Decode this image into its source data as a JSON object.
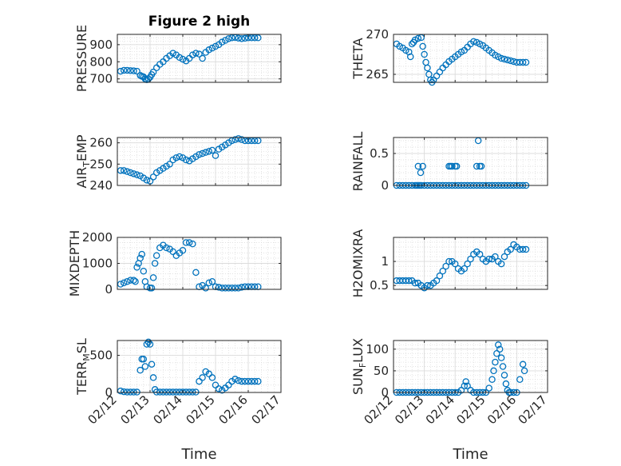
{
  "figure": {
    "title": "Figure 2 high"
  },
  "chart_data": [
    {
      "type": "scatter",
      "title": "Figure 2 high",
      "ylabel": "PRESSURE",
      "ylabel_parts": [
        {
          "t": "PRESSURE"
        }
      ],
      "xlim": [
        0,
        5
      ],
      "ylim": [
        680,
        960
      ],
      "yticks": [
        700,
        800,
        900
      ],
      "ytick_labels": [
        "700",
        "800",
        "900"
      ],
      "xticks": [
        0,
        1,
        2,
        3,
        4,
        5
      ],
      "xtick_labels": [
        "02/12",
        "02/13",
        "02/14",
        "02/15",
        "02/16",
        "02/17"
      ],
      "show_xticklabels": false,
      "xlabel": "",
      "grid": true,
      "marker": "open-circle",
      "color": "#0072bd",
      "x": [
        0.1,
        0.2,
        0.3,
        0.4,
        0.5,
        0.6,
        0.7,
        0.75,
        0.8,
        0.85,
        0.9,
        0.95,
        1.0,
        1.05,
        1.1,
        1.2,
        1.3,
        1.4,
        1.5,
        1.6,
        1.7,
        1.8,
        1.9,
        2.0,
        2.1,
        2.2,
        2.3,
        2.4,
        2.5,
        2.6,
        2.7,
        2.8,
        2.9,
        3.0,
        3.1,
        3.2,
        3.3,
        3.4,
        3.5,
        3.6,
        3.7,
        3.8,
        3.9,
        4.0,
        4.1,
        4.2,
        4.3
      ],
      "y": [
        745,
        750,
        750,
        748,
        747,
        745,
        720,
        715,
        712,
        700,
        695,
        700,
        710,
        725,
        740,
        765,
        785,
        800,
        820,
        835,
        850,
        840,
        825,
        815,
        805,
        820,
        840,
        850,
        845,
        820,
        855,
        870,
        880,
        890,
        900,
        915,
        925,
        935,
        940,
        942,
        938,
        935,
        937,
        940,
        940,
        940,
        940
      ]
    },
    {
      "type": "scatter",
      "title": "",
      "ylabel": "THETA",
      "ylabel_parts": [
        {
          "t": "THETA"
        }
      ],
      "xlim": [
        0,
        5
      ],
      "ylim": [
        264,
        270
      ],
      "yticks": [
        265,
        270
      ],
      "ytick_labels": [
        "265",
        "270"
      ],
      "xticks": [
        0,
        1,
        2,
        3,
        4,
        5
      ],
      "xtick_labels": [
        "02/12",
        "02/13",
        "02/14",
        "02/15",
        "02/16",
        "02/17"
      ],
      "show_xticklabels": false,
      "xlabel": "",
      "grid": true,
      "marker": "open-circle",
      "color": "#0072bd",
      "x": [
        0.1,
        0.2,
        0.3,
        0.4,
        0.5,
        0.55,
        0.6,
        0.65,
        0.7,
        0.8,
        0.9,
        0.95,
        1.0,
        1.05,
        1.1,
        1.15,
        1.2,
        1.25,
        1.3,
        1.4,
        1.5,
        1.6,
        1.7,
        1.8,
        1.9,
        2.0,
        2.1,
        2.2,
        2.3,
        2.4,
        2.5,
        2.6,
        2.7,
        2.8,
        2.9,
        3.0,
        3.1,
        3.2,
        3.3,
        3.4,
        3.5,
        3.6,
        3.7,
        3.8,
        3.9,
        4.0,
        4.1,
        4.2,
        4.3
      ],
      "y": [
        268.8,
        268.5,
        268.3,
        268.0,
        267.8,
        267.2,
        268.8,
        269.0,
        269.3,
        269.5,
        269.6,
        268.5,
        267.5,
        266.5,
        265.8,
        265.0,
        264.3,
        264.0,
        264.3,
        264.8,
        265.3,
        265.8,
        266.2,
        266.6,
        266.9,
        267.2,
        267.5,
        267.8,
        268.0,
        268.4,
        268.8,
        269.1,
        269.0,
        268.8,
        268.6,
        268.3,
        268.0,
        267.7,
        267.4,
        267.2,
        267.0,
        266.9,
        266.8,
        266.7,
        266.6,
        266.5,
        266.5,
        266.5,
        266.5
      ]
    },
    {
      "type": "scatter",
      "title": "",
      "ylabel": "AIR_TEMP",
      "ylabel_parts": [
        {
          "t": "AIR"
        },
        {
          "t": "T",
          "sub": true
        },
        {
          "t": "EMP"
        }
      ],
      "xlim": [
        0,
        5
      ],
      "ylim": [
        240,
        262.5
      ],
      "yticks": [
        240,
        250,
        260
      ],
      "ytick_labels": [
        "240",
        "250",
        "260"
      ],
      "xticks": [
        0,
        1,
        2,
        3,
        4,
        5
      ],
      "xtick_labels": [
        "02/12",
        "02/13",
        "02/14",
        "02/15",
        "02/16",
        "02/17"
      ],
      "show_xticklabels": false,
      "xlabel": "",
      "grid": true,
      "marker": "open-circle",
      "color": "#0072bd",
      "x": [
        0.1,
        0.2,
        0.3,
        0.4,
        0.5,
        0.6,
        0.7,
        0.8,
        0.9,
        1.0,
        1.1,
        1.2,
        1.3,
        1.4,
        1.5,
        1.6,
        1.7,
        1.8,
        1.9,
        2.0,
        2.1,
        2.2,
        2.3,
        2.4,
        2.5,
        2.6,
        2.7,
        2.8,
        2.9,
        3.0,
        3.1,
        3.2,
        3.3,
        3.4,
        3.5,
        3.6,
        3.7,
        3.8,
        3.9,
        4.0,
        4.1,
        4.2,
        4.3
      ],
      "y": [
        247,
        247,
        246.5,
        246,
        245.5,
        245,
        244.5,
        243.5,
        242.5,
        242,
        244,
        246,
        247,
        248,
        249,
        250,
        252,
        253,
        253.5,
        253,
        252,
        251.5,
        252.5,
        253.5,
        254.5,
        255,
        255.5,
        256,
        256.5,
        254,
        257,
        258,
        259,
        260,
        261,
        261.5,
        262,
        261.5,
        261,
        261,
        261,
        261,
        261
      ]
    },
    {
      "type": "scatter",
      "title": "",
      "ylabel": "RAINFALL",
      "ylabel_parts": [
        {
          "t": "RAINFALL"
        }
      ],
      "xlim": [
        0,
        5
      ],
      "ylim": [
        0,
        0.75
      ],
      "yticks": [
        0,
        0.5
      ],
      "ytick_labels": [
        "0",
        "0.5"
      ],
      "xticks": [
        0,
        1,
        2,
        3,
        4,
        5
      ],
      "xtick_labels": [
        "02/12",
        "02/13",
        "02/14",
        "02/15",
        "02/16",
        "02/17"
      ],
      "show_xticklabels": false,
      "xlabel": "",
      "grid": true,
      "marker": "open-circle",
      "color": "#0072bd",
      "x": [
        0.1,
        0.2,
        0.3,
        0.4,
        0.5,
        0.6,
        0.7,
        0.75,
        0.8,
        0.85,
        0.9,
        1.0,
        1.1,
        1.2,
        1.3,
        1.4,
        1.5,
        1.6,
        1.7,
        1.8,
        1.9,
        2.0,
        2.1,
        2.2,
        2.3,
        2.4,
        2.5,
        2.6,
        2.7,
        2.8,
        2.9,
        3.0,
        3.1,
        3.2,
        3.3,
        3.4,
        3.5,
        3.6,
        3.7,
        3.8,
        3.9,
        4.0,
        4.1,
        4.2,
        4.3,
        0.8,
        0.88,
        0.95,
        1.8,
        1.85,
        1.9,
        2.0,
        2.05,
        2.7,
        2.75,
        2.8,
        2.85
      ],
      "y": [
        0,
        0,
        0,
        0,
        0,
        0,
        0,
        0,
        0,
        0,
        0,
        0,
        0,
        0,
        0,
        0,
        0,
        0,
        0,
        0,
        0,
        0,
        0,
        0,
        0,
        0,
        0,
        0,
        0,
        0,
        0,
        0,
        0,
        0,
        0,
        0,
        0,
        0,
        0,
        0,
        0,
        0,
        0,
        0,
        0,
        0.3,
        0.2,
        0.3,
        0.3,
        0.3,
        0.3,
        0.3,
        0.3,
        0.3,
        0.7,
        0.3,
        0.3
      ]
    },
    {
      "type": "scatter",
      "title": "",
      "ylabel": "MIXDEPTH",
      "ylabel_parts": [
        {
          "t": "MIXDEPTH"
        }
      ],
      "xlim": [
        0,
        5
      ],
      "ylim": [
        0,
        2000
      ],
      "yticks": [
        0,
        1000,
        2000
      ],
      "ytick_labels": [
        "0",
        "1000",
        "2000"
      ],
      "xticks": [
        0,
        1,
        2,
        3,
        4,
        5
      ],
      "xtick_labels": [
        "02/12",
        "02/13",
        "02/14",
        "02/15",
        "02/16",
        "02/17"
      ],
      "show_xticklabels": false,
      "xlabel": "",
      "grid": true,
      "marker": "open-circle",
      "color": "#0072bd",
      "x": [
        0.1,
        0.2,
        0.3,
        0.4,
        0.5,
        0.55,
        0.6,
        0.65,
        0.7,
        0.75,
        0.8,
        0.85,
        0.9,
        1.0,
        1.05,
        1.1,
        1.15,
        1.2,
        1.3,
        1.4,
        1.5,
        1.6,
        1.7,
        1.8,
        1.9,
        2.0,
        2.1,
        2.2,
        2.3,
        2.4,
        2.5,
        2.6,
        2.7,
        2.8,
        2.9,
        3.0,
        3.1,
        3.2,
        3.3,
        3.4,
        3.5,
        3.6,
        3.7,
        3.8,
        3.9,
        4.0,
        4.1,
        4.2,
        4.3
      ],
      "y": [
        200,
        250,
        300,
        350,
        350,
        300,
        850,
        1000,
        1200,
        1350,
        700,
        300,
        100,
        50,
        50,
        450,
        1000,
        1300,
        1600,
        1700,
        1600,
        1550,
        1450,
        1300,
        1400,
        1500,
        1800,
        1800,
        1750,
        650,
        100,
        150,
        50,
        250,
        300,
        100,
        80,
        50,
        50,
        50,
        50,
        50,
        50,
        80,
        100,
        100,
        100,
        100,
        100
      ]
    },
    {
      "type": "scatter",
      "title": "",
      "ylabel": "H2OMIXRA",
      "ylabel_parts": [
        {
          "t": "H2OMIXRA"
        }
      ],
      "xlim": [
        0,
        5
      ],
      "ylim": [
        0.42,
        1.5
      ],
      "yticks": [
        0.5,
        1
      ],
      "ytick_labels": [
        "0.5",
        "1"
      ],
      "xticks": [
        0,
        1,
        2,
        3,
        4,
        5
      ],
      "xtick_labels": [
        "02/12",
        "02/13",
        "02/14",
        "02/15",
        "02/16",
        "02/17"
      ],
      "show_xticklabels": false,
      "xlabel": "",
      "grid": true,
      "marker": "open-circle",
      "color": "#0072bd",
      "x": [
        0.1,
        0.2,
        0.3,
        0.4,
        0.5,
        0.6,
        0.7,
        0.8,
        0.9,
        1.0,
        1.1,
        1.2,
        1.3,
        1.4,
        1.5,
        1.6,
        1.7,
        1.8,
        1.9,
        2.0,
        2.1,
        2.2,
        2.3,
        2.4,
        2.5,
        2.6,
        2.7,
        2.8,
        2.9,
        3.0,
        3.1,
        3.2,
        3.3,
        3.4,
        3.5,
        3.6,
        3.7,
        3.8,
        3.9,
        4.0,
        4.1,
        4.2,
        4.3
      ],
      "y": [
        0.6,
        0.6,
        0.6,
        0.6,
        0.6,
        0.6,
        0.55,
        0.55,
        0.5,
        0.45,
        0.5,
        0.5,
        0.55,
        0.6,
        0.7,
        0.8,
        0.9,
        1.0,
        1.0,
        0.95,
        0.85,
        0.8,
        0.85,
        0.95,
        1.05,
        1.15,
        1.2,
        1.15,
        1.05,
        1.0,
        1.05,
        1.05,
        1.1,
        1.0,
        0.95,
        1.1,
        1.2,
        1.25,
        1.35,
        1.3,
        1.25,
        1.25,
        1.25
      ]
    },
    {
      "type": "scatter",
      "title": "",
      "ylabel": "TERR_MSL",
      "ylabel_parts": [
        {
          "t": "TERR"
        },
        {
          "t": "M",
          "sub": true
        },
        {
          "t": "SL"
        }
      ],
      "xlim": [
        0,
        5
      ],
      "ylim": [
        0,
        700
      ],
      "yticks": [
        0,
        500
      ],
      "ytick_labels": [
        "0",
        "500"
      ],
      "xticks": [
        0,
        1,
        2,
        3,
        4,
        5
      ],
      "xtick_labels": [
        "02/12",
        "02/13",
        "02/14",
        "02/15",
        "02/16",
        "02/17"
      ],
      "show_xticklabels": true,
      "xlabel": "Time",
      "grid": true,
      "marker": "open-circle",
      "color": "#0072bd",
      "x": [
        0.1,
        0.2,
        0.3,
        0.4,
        0.5,
        0.6,
        0.7,
        0.75,
        0.8,
        0.85,
        0.9,
        0.95,
        1.0,
        1.05,
        1.1,
        1.15,
        1.2,
        1.3,
        1.4,
        1.5,
        1.6,
        1.7,
        1.8,
        1.9,
        2.0,
        2.1,
        2.2,
        2.3,
        2.4,
        2.5,
        2.6,
        2.7,
        2.8,
        2.9,
        3.0,
        3.1,
        3.2,
        3.3,
        3.4,
        3.5,
        3.6,
        3.7,
        3.8,
        3.9,
        4.0,
        4.1,
        4.2,
        4.3
      ],
      "y": [
        20,
        10,
        5,
        5,
        5,
        5,
        300,
        450,
        450,
        350,
        650,
        680,
        650,
        380,
        200,
        40,
        5,
        5,
        5,
        5,
        5,
        5,
        5,
        5,
        5,
        5,
        5,
        5,
        5,
        150,
        200,
        280,
        250,
        200,
        100,
        50,
        30,
        60,
        100,
        150,
        180,
        160,
        150,
        150,
        150,
        150,
        150,
        150
      ]
    },
    {
      "type": "scatter",
      "title": "",
      "ylabel": "SUN_FLUX",
      "ylabel_parts": [
        {
          "t": "SUN"
        },
        {
          "t": "F",
          "sub": true
        },
        {
          "t": "LUX"
        }
      ],
      "xlim": [
        0,
        5
      ],
      "ylim": [
        0,
        120
      ],
      "yticks": [
        0,
        50,
        100
      ],
      "ytick_labels": [
        "0",
        "50",
        "100"
      ],
      "xticks": [
        0,
        1,
        2,
        3,
        4,
        5
      ],
      "xtick_labels": [
        "02/12",
        "02/13",
        "02/14",
        "02/15",
        "02/16",
        "02/17"
      ],
      "show_xticklabels": true,
      "xlabel": "Time",
      "grid": true,
      "marker": "open-circle",
      "color": "#0072bd",
      "x": [
        0.1,
        0.2,
        0.3,
        0.4,
        0.5,
        0.6,
        0.7,
        0.8,
        0.9,
        1.0,
        1.1,
        1.2,
        1.3,
        1.4,
        1.5,
        1.6,
        1.7,
        1.8,
        1.9,
        2.0,
        2.1,
        2.2,
        2.3,
        2.35,
        2.4,
        2.5,
        2.6,
        2.7,
        2.8,
        2.9,
        3.0,
        3.1,
        3.2,
        3.25,
        3.3,
        3.35,
        3.4,
        3.45,
        3.5,
        3.55,
        3.6,
        3.65,
        3.7,
        3.75,
        3.8,
        3.9,
        4.0,
        4.1,
        4.2,
        4.25
      ],
      "y": [
        0,
        0,
        0,
        0,
        0,
        0,
        0,
        0,
        0,
        0,
        0,
        0,
        0,
        0,
        0,
        0,
        0,
        0,
        0,
        0,
        0,
        5,
        15,
        25,
        15,
        5,
        0,
        0,
        0,
        0,
        0,
        10,
        30,
        50,
        70,
        90,
        110,
        100,
        80,
        60,
        40,
        20,
        5,
        0,
        0,
        0,
        0,
        30,
        65,
        50
      ]
    }
  ]
}
